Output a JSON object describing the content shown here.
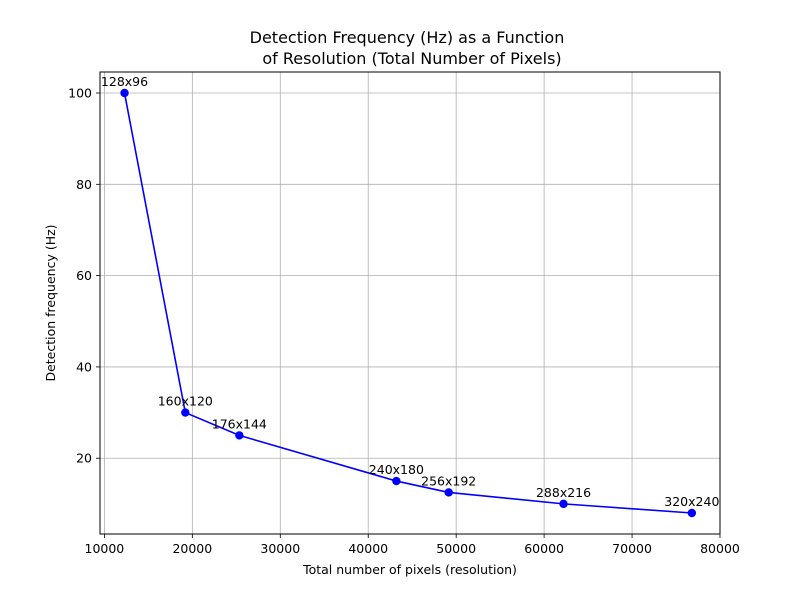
{
  "chart_data": {
    "type": "line",
    "title_lines": [
      "Detection Frequency (Hz) as a Function",
      "of Resolution (Total Number of Pixels)"
    ],
    "xlabel": "Total number of pixels (resolution)",
    "ylabel": "Detection frequency (Hz)",
    "xlim": [
      9500,
      80000
    ],
    "ylim": [
      3.4,
      104.6
    ],
    "xticks": [
      10000,
      20000,
      30000,
      40000,
      50000,
      60000,
      70000,
      80000
    ],
    "yticks": [
      20,
      40,
      60,
      80,
      100
    ],
    "grid": true,
    "series": [
      {
        "color": "#0000ff",
        "marker": "circle",
        "x": [
          12288,
          19200,
          25344,
          43200,
          49152,
          62208,
          76800
        ],
        "y": [
          100,
          30,
          25,
          15,
          12.5,
          10,
          8
        ],
        "labels": [
          "128x96",
          "160x120",
          "176x144",
          "240x180",
          "256x192",
          "288x216",
          "320x240"
        ]
      }
    ]
  }
}
